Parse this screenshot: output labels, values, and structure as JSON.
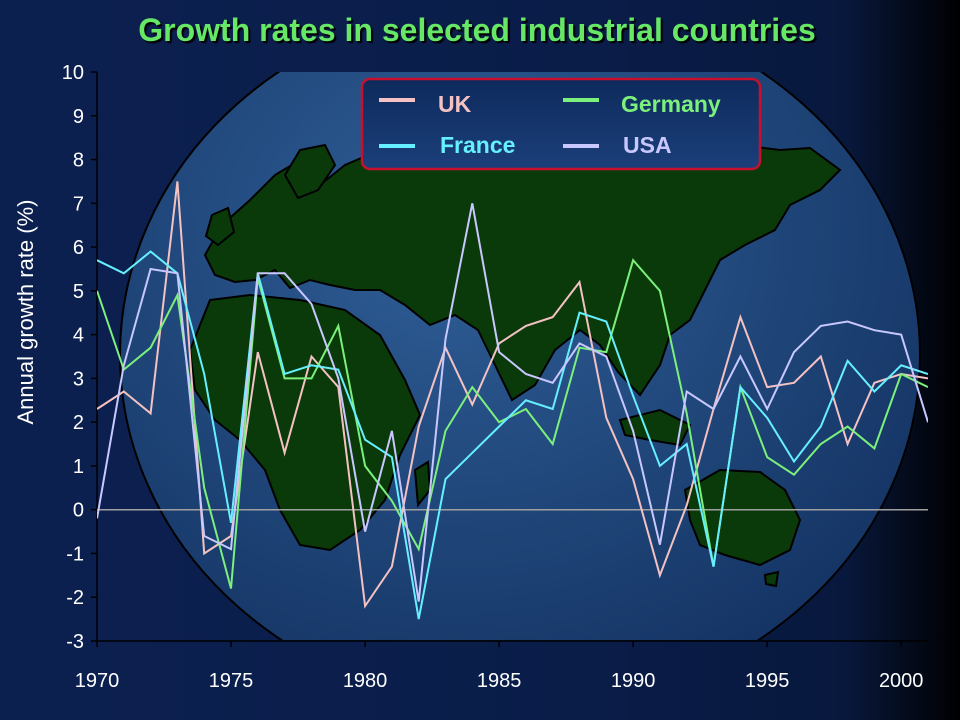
{
  "colors": {
    "background": "#0b1f4d",
    "land": "#0a3a0a",
    "title": "#66e866",
    "legend_border": "#c8102e",
    "zero_line": "#a0a0a0"
  },
  "chart_data": {
    "type": "line",
    "title": "Growth rates in selected industrial countries",
    "xlabel": "",
    "ylabel": "Annual growth rate (%)",
    "xlim": [
      1970,
      2001
    ],
    "ylim": [
      -3,
      10
    ],
    "x_ticks": [
      "1970",
      "1975",
      "1980",
      "1985",
      "1990",
      "1995",
      "2000"
    ],
    "y_ticks": [
      "10",
      "9",
      "8",
      "7",
      "6",
      "5",
      "4",
      "3",
      "2",
      "1",
      "0",
      "-1",
      "-2",
      "-3"
    ],
    "grid": false,
    "legend_position": "top-center",
    "x": [
      1970,
      1971,
      1972,
      1973,
      1974,
      1975,
      1976,
      1977,
      1978,
      1979,
      1980,
      1981,
      1982,
      1983,
      1984,
      1985,
      1986,
      1987,
      1988,
      1989,
      1990,
      1991,
      1992,
      1993,
      1994,
      1995,
      1996,
      1997,
      1998,
      1999,
      2000,
      2001
    ],
    "series": [
      {
        "name": "UK",
        "color": "#f4c2c2",
        "values": [
          2.3,
          2.7,
          2.2,
          7.5,
          -1.0,
          -0.6,
          3.6,
          1.3,
          3.5,
          2.8,
          -2.2,
          -1.3,
          1.9,
          3.7,
          2.4,
          3.8,
          4.2,
          4.4,
          5.2,
          2.1,
          0.7,
          -1.5,
          0.1,
          2.3,
          4.4,
          2.8,
          2.9,
          3.5,
          1.5,
          2.9,
          3.1,
          3.0
        ]
      },
      {
        "name": "Germany",
        "color": "#7cf07c",
        "values": [
          5.0,
          3.2,
          3.7,
          4.9,
          0.5,
          -1.8,
          5.3,
          3.0,
          3.0,
          4.2,
          1.0,
          0.2,
          -0.9,
          1.8,
          2.8,
          2.0,
          2.3,
          1.5,
          3.7,
          3.6,
          5.7,
          5.0,
          2.2,
          -1.3,
          2.8,
          1.2,
          0.8,
          1.5,
          1.9,
          1.4,
          3.1,
          2.8
        ]
      },
      {
        "name": "France",
        "color": "#66f0ff",
        "values": [
          5.7,
          5.4,
          5.9,
          5.4,
          3.1,
          -0.3,
          5.4,
          3.1,
          3.3,
          3.2,
          1.6,
          1.2,
          -2.5,
          0.7,
          1.3,
          1.9,
          2.5,
          2.3,
          4.5,
          4.3,
          2.6,
          1.0,
          1.5,
          -1.3,
          2.8,
          2.1,
          1.1,
          1.9,
          3.4,
          2.7,
          3.3,
          3.1
        ]
      },
      {
        "name": "USA",
        "color": "#c8c8ff",
        "values": [
          -0.2,
          3.3,
          5.5,
          5.4,
          -0.6,
          -0.9,
          5.4,
          5.4,
          4.7,
          3.0,
          -0.5,
          1.8,
          -2.1,
          3.9,
          7.0,
          3.6,
          3.1,
          2.9,
          3.8,
          3.5,
          1.8,
          -0.8,
          2.7,
          2.3,
          3.5,
          2.3,
          3.6,
          4.2,
          4.3,
          4.1,
          4.0,
          2.0
        ]
      }
    ]
  },
  "legend": {
    "uk_label": "UK",
    "germany_label": "Germany",
    "france_label": "France",
    "usa_label": "USA"
  }
}
